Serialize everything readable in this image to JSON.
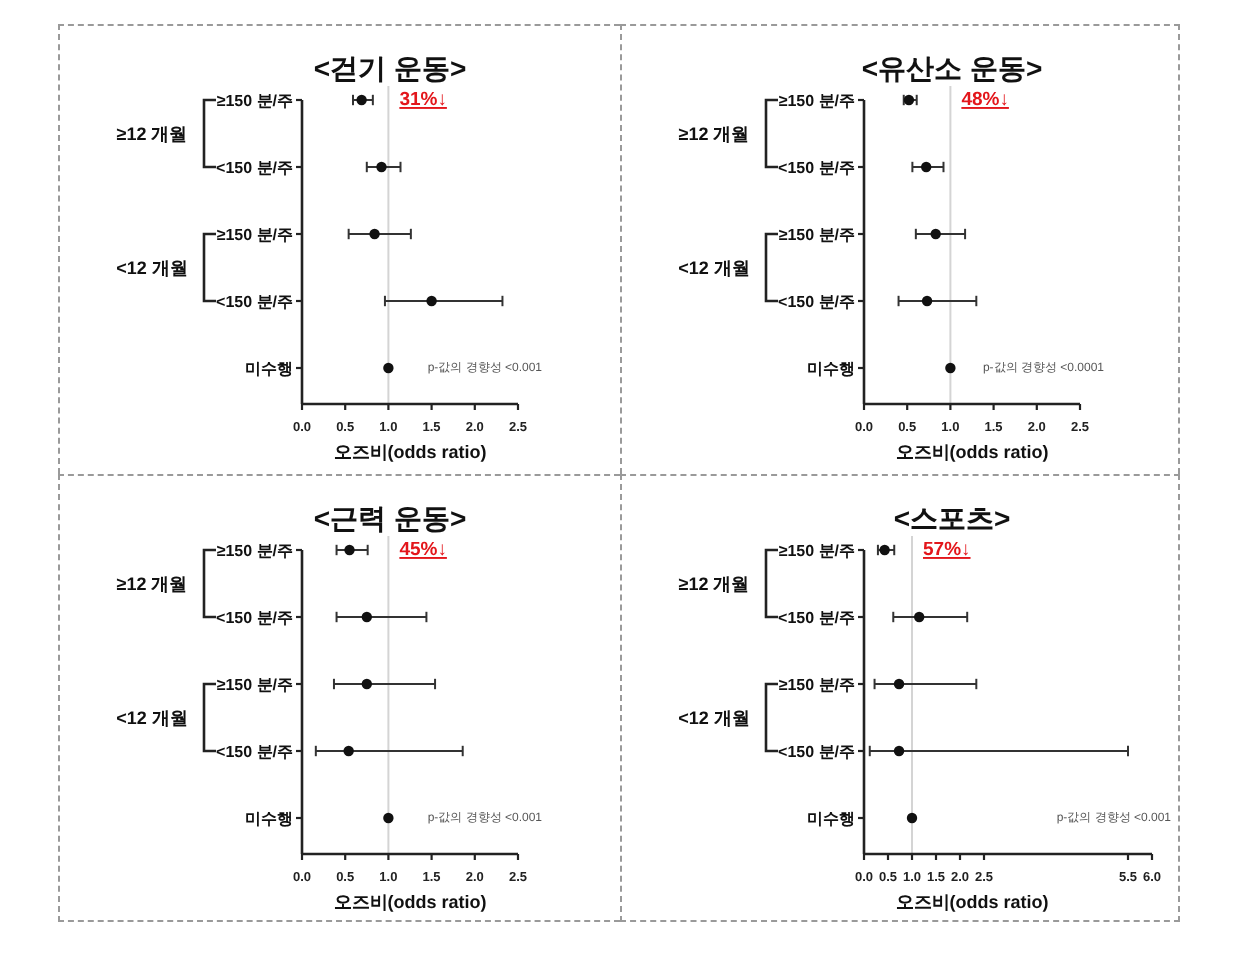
{
  "chart_data": [
    {
      "type": "scatter",
      "orientation": "horizontal",
      "title": "<걷기 운동>",
      "xlabel": "오즈비(odds ratio)",
      "categories": [
        "≥150 분/주",
        "<150 분/주",
        "≥150 분/주",
        "<150 분/주",
        "미수행"
      ],
      "series": [
        {
          "color": "#111111",
          "values": [
            0.69,
            0.92,
            0.84,
            1.5,
            1
          ],
          "errors": [
            [
              0.59,
              0.82
            ],
            [
              0.75,
              1.14
            ],
            [
              0.54,
              1.26
            ],
            [
              0.96,
              2.32
            ],
            null
          ]
        }
      ],
      "xlim": [
        0,
        2.5
      ],
      "xticks": [
        {
          "value": 0,
          "label": "0.0"
        },
        0.5,
        {
          "value": 1,
          "label": "1.0"
        },
        1.5,
        {
          "value": 2,
          "label": "2.0"
        },
        2.5
      ],
      "ref_lines": [
        {
          "axis": "x",
          "value": 1,
          "color": "#d4d4d4"
        }
      ],
      "marker": "circle",
      "annotations": [
        "≥12 개월",
        "<12 개월",
        "31%↓",
        "p-값의 경향성 <0.001"
      ]
    },
    {
      "type": "scatter",
      "orientation": "horizontal",
      "title": "<유산소 운동>",
      "xlabel": "오즈비(odds ratio)",
      "categories": [
        "≥150 분/주",
        "<150 분/주",
        "≥150 분/주",
        "<150 분/주",
        "미수행"
      ],
      "series": [
        {
          "color": "#111111",
          "values": [
            0.52,
            0.72,
            0.83,
            0.73,
            1
          ],
          "errors": [
            [
              0.46,
              0.61
            ],
            [
              0.56,
              0.92
            ],
            [
              0.6,
              1.17
            ],
            [
              0.4,
              1.3
            ],
            null
          ]
        }
      ],
      "xlim": [
        0,
        2.5
      ],
      "xticks": [
        {
          "value": 0,
          "label": "0.0"
        },
        0.5,
        {
          "value": 1,
          "label": "1.0"
        },
        1.5,
        {
          "value": 2,
          "label": "2.0"
        },
        2.5
      ],
      "ref_lines": [
        {
          "axis": "x",
          "value": 1,
          "color": "#d4d4d4"
        }
      ],
      "marker": "circle",
      "annotations": [
        "≥12 개월",
        "<12 개월",
        "48%↓",
        "p-값의 경향성 <0.0001"
      ]
    },
    {
      "type": "scatter",
      "orientation": "horizontal",
      "title": "<근력 운동>",
      "xlabel": "오즈비(odds ratio)",
      "categories": [
        "≥150 분/주",
        "<150 분/주",
        "≥150 분/주",
        "<150 분/주",
        "미수행"
      ],
      "series": [
        {
          "color": "#111111",
          "values": [
            0.55,
            0.75,
            0.75,
            0.54,
            1
          ],
          "errors": [
            [
              0.4,
              0.76
            ],
            [
              0.4,
              1.44
            ],
            [
              0.37,
              1.54
            ],
            [
              0.16,
              1.86
            ],
            null
          ]
        }
      ],
      "xlim": [
        0,
        2.5
      ],
      "xticks": [
        {
          "value": 0,
          "label": "0.0"
        },
        0.5,
        {
          "value": 1,
          "label": "1.0"
        },
        1.5,
        {
          "value": 2,
          "label": "2.0"
        },
        2.5
      ],
      "ref_lines": [
        {
          "axis": "x",
          "value": 1,
          "color": "#d4d4d4"
        }
      ],
      "marker": "circle",
      "annotations": [
        "≥12 개월",
        "<12 개월",
        "45%↓",
        "p-값의 경향성 <0.001"
      ]
    },
    {
      "type": "scatter",
      "orientation": "horizontal",
      "title": "<스포츠>",
      "xlabel": "오즈비(odds ratio)",
      "categories": [
        "≥150 분/주",
        "<150 분/주",
        "≥150 분/주",
        "<150 분/주",
        "미수행"
      ],
      "series": [
        {
          "color": "#111111",
          "values": [
            0.43,
            1.15,
            0.73,
            0.73,
            1
          ],
          "errors": [
            [
              0.29,
              0.63
            ],
            [
              0.61,
              2.15
            ],
            [
              0.22,
              2.34
            ],
            [
              0.12,
              5.5
            ],
            null
          ]
        }
      ],
      "xlim": [
        0,
        6
      ],
      "xticks": [
        {
          "value": 0,
          "label": "0.0"
        },
        0.5,
        {
          "value": 1,
          "label": "1.0"
        },
        1.5,
        {
          "value": 2,
          "label": "2.0"
        },
        2.5,
        5.5,
        {
          "value": 6,
          "label": "6.0"
        }
      ],
      "ref_lines": [
        {
          "axis": "x",
          "value": 1,
          "color": "#d4d4d4"
        }
      ],
      "marker": "circle",
      "annotations": [
        "≥12 개월",
        "<12 개월",
        "57%↓",
        "p-값의 경향성 <0.001"
      ]
    }
  ]
}
